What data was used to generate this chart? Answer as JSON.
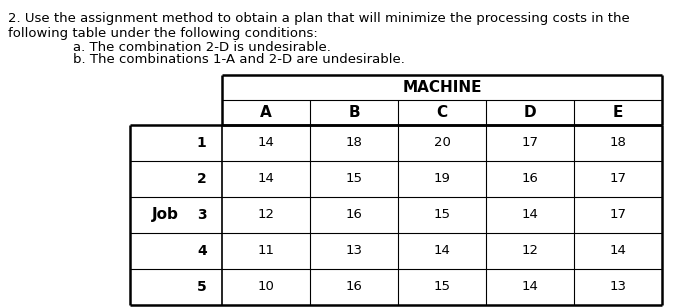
{
  "title_line1": "2. Use the assignment method to obtain a plan that will minimize the processing costs in the",
  "title_line2": "following table under the following conditions:",
  "condition_a": "a. The combination 2-D is undesirable.",
  "condition_b": "b. The combinations 1-A and 2-D are undesirable.",
  "machine_label": "MACHINE",
  "col_headers": [
    "A",
    "B",
    "C",
    "D",
    "E"
  ],
  "row_label": "Job",
  "row_numbers": [
    "1",
    "2",
    "3",
    "4",
    "5"
  ],
  "table_data": [
    [
      14,
      18,
      20,
      17,
      18
    ],
    [
      14,
      15,
      19,
      16,
      17
    ],
    [
      12,
      16,
      15,
      14,
      17
    ],
    [
      11,
      13,
      14,
      12,
      14
    ],
    [
      10,
      16,
      15,
      14,
      13
    ]
  ],
  "bg_color": "#ffffff",
  "text_color": "#000000",
  "title_fontsize": 9.5,
  "cond_fontsize": 9.5,
  "table_fontsize": 9.5,
  "header_fontsize": 10.0,
  "lw_thick": 1.8,
  "lw_thin": 0.8,
  "lw_mid": 1.2
}
